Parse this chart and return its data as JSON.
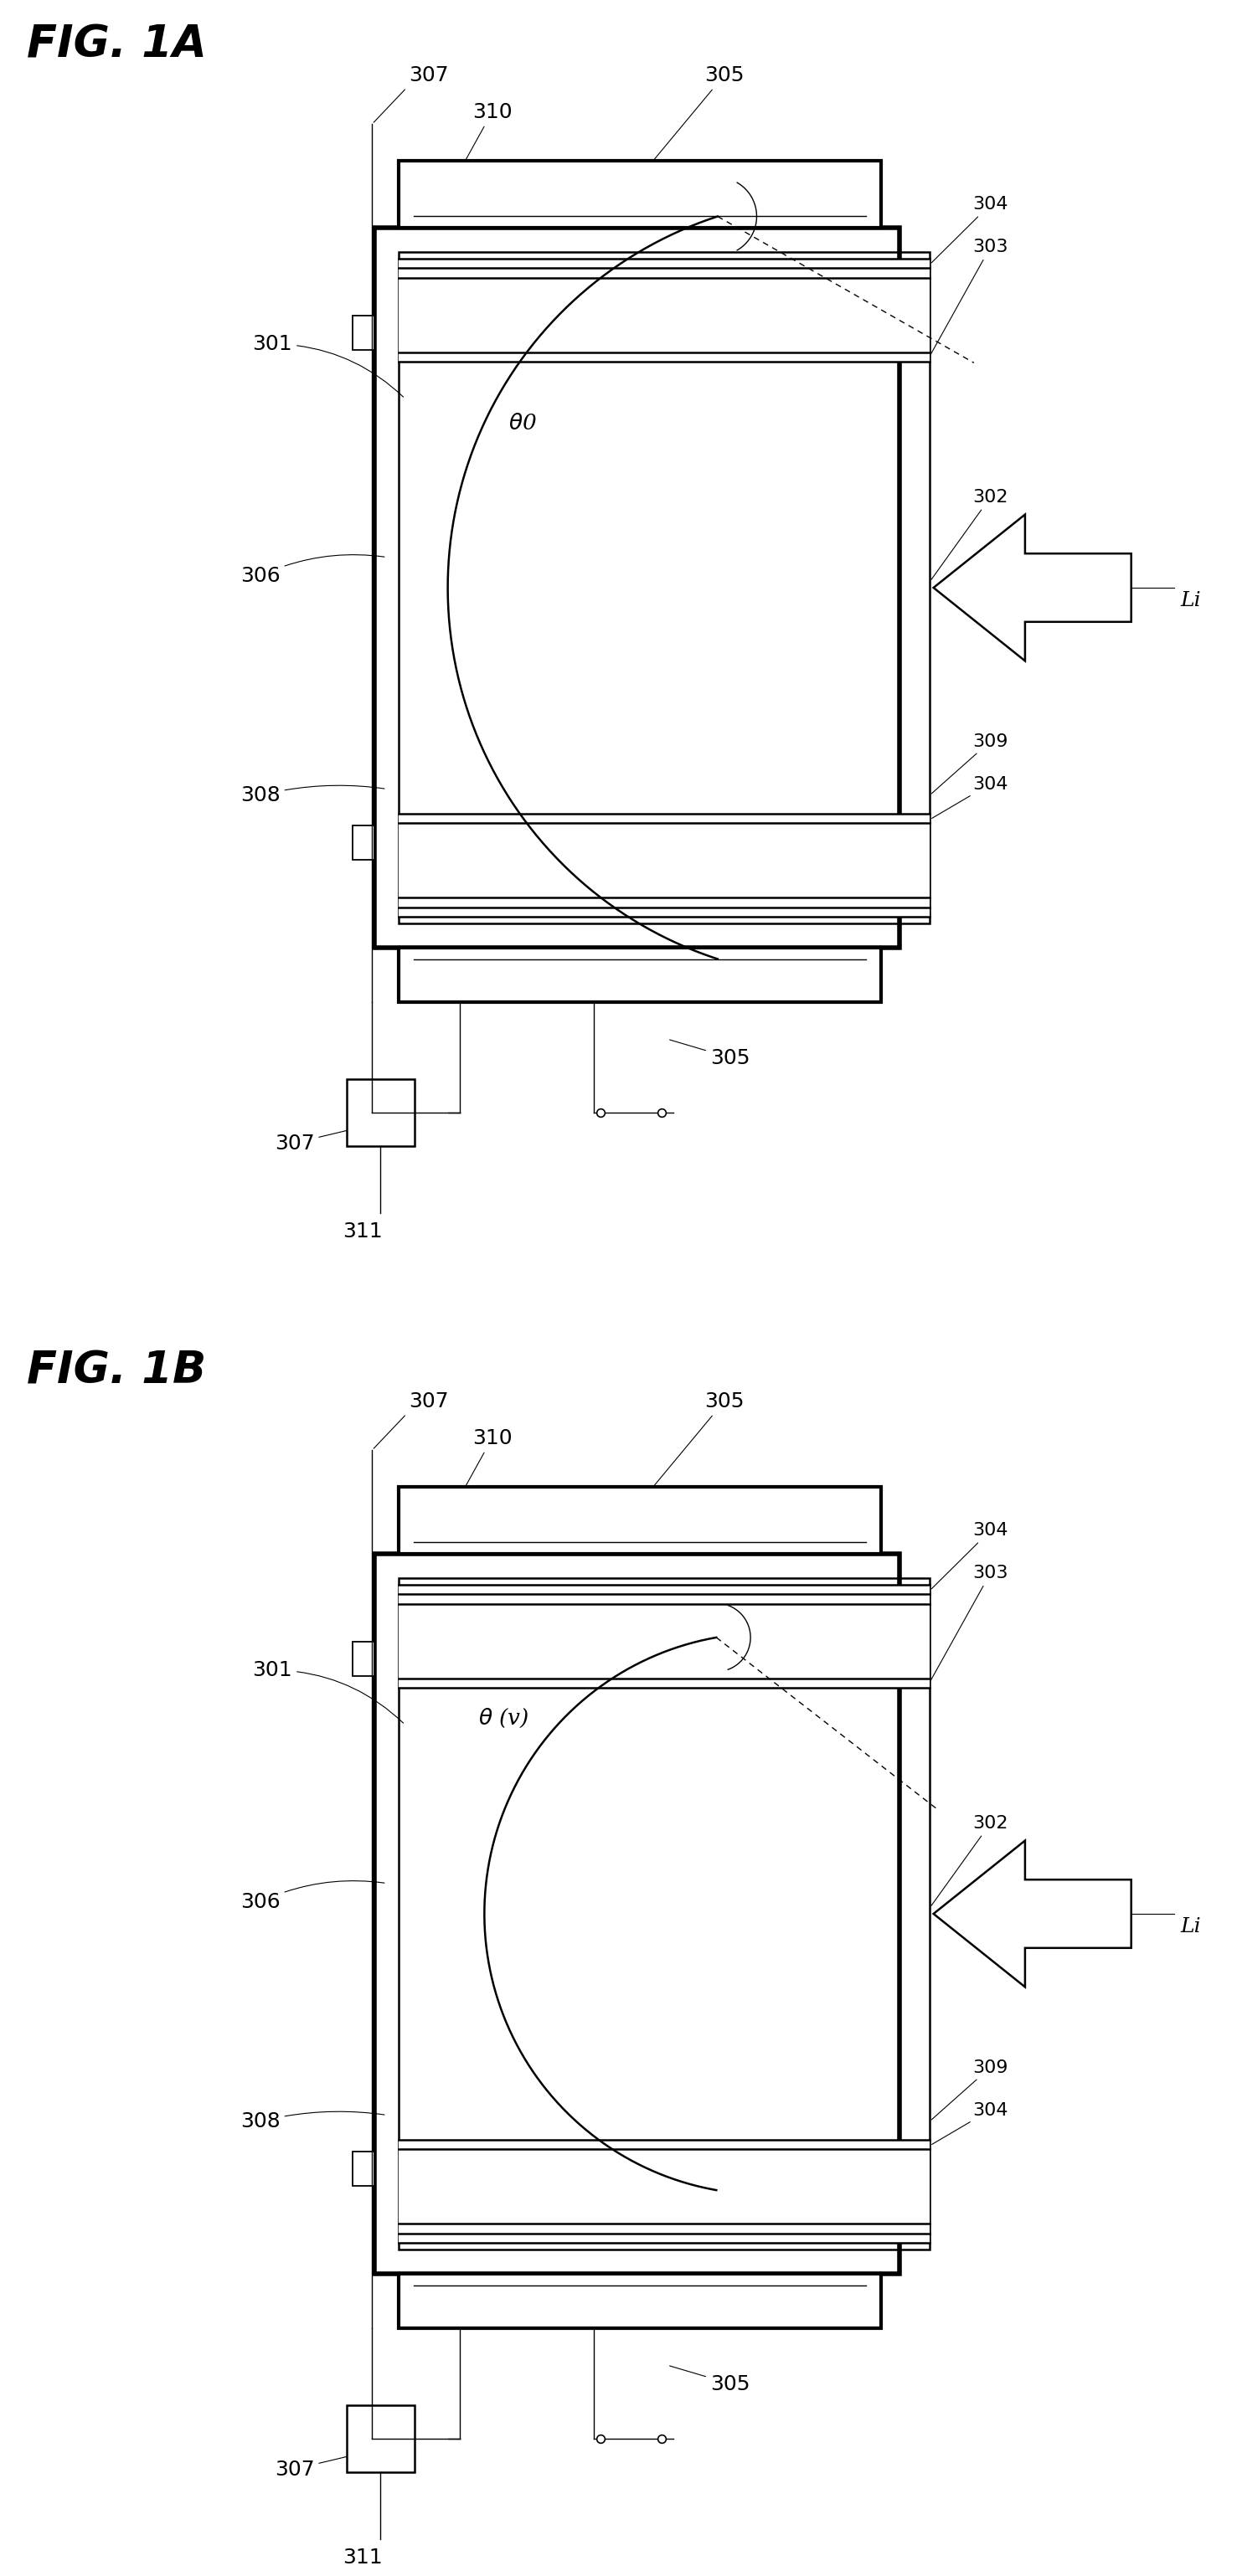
{
  "fig_title_A": "FIG. 1A",
  "fig_title_B": "FIG. 1B",
  "bg_color": "#ffffff",
  "line_color": "#000000",
  "lw_thin": 1.0,
  "lw_med": 1.8,
  "lw_thick": 3.0,
  "lw_outer": 4.0,
  "label_307_top": "307",
  "label_310": "310",
  "label_305_top": "305",
  "label_301": "301",
  "label_theta0": "θ0",
  "label_thetav": "θ (v)",
  "label_306": "306",
  "label_308": "308",
  "label_304_top": "304",
  "label_303": "303",
  "label_Li": "Li",
  "label_302": "302",
  "label_309": "309",
  "label_304_bot": "304",
  "label_307_bot": "307",
  "label_305_bot": "305",
  "label_311": "311"
}
